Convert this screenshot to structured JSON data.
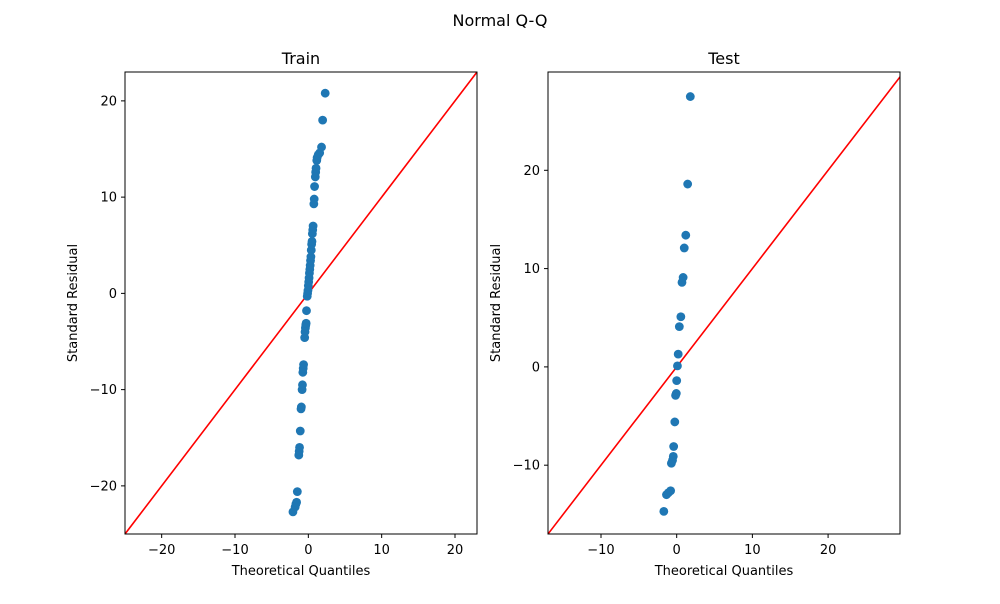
{
  "figure": {
    "title": "Normal Q-Q"
  },
  "chart_data": [
    {
      "type": "scatter",
      "title": "Train",
      "xlabel": "Theoretical Quantiles",
      "ylabel": "Standard Residual",
      "xlim": [
        -25,
        23
      ],
      "ylim": [
        -25,
        23
      ],
      "xticks": [
        -20,
        -10,
        0,
        10,
        20
      ],
      "yticks": [
        -20,
        -10,
        0,
        10,
        20
      ],
      "grid": false,
      "reference_line": {
        "slope": 1,
        "intercept": 0,
        "color": "#ff0000"
      },
      "marker_color": "#1f77b4",
      "points": [
        {
          "x": -2.1,
          "y": -22.7
        },
        {
          "x": -1.8,
          "y": -22.2
        },
        {
          "x": -1.7,
          "y": -21.9
        },
        {
          "x": -1.6,
          "y": -21.7
        },
        {
          "x": -1.5,
          "y": -20.6
        },
        {
          "x": -1.3,
          "y": -16.8
        },
        {
          "x": -1.25,
          "y": -16.4
        },
        {
          "x": -1.2,
          "y": -16.0
        },
        {
          "x": -1.1,
          "y": -14.3
        },
        {
          "x": -1.0,
          "y": -12.0
        },
        {
          "x": -0.95,
          "y": -11.8
        },
        {
          "x": -0.85,
          "y": -10.0
        },
        {
          "x": -0.8,
          "y": -9.5
        },
        {
          "x": -0.75,
          "y": -8.2
        },
        {
          "x": -0.7,
          "y": -7.8
        },
        {
          "x": -0.65,
          "y": -7.4
        },
        {
          "x": -0.5,
          "y": -4.6
        },
        {
          "x": -0.45,
          "y": -4.0
        },
        {
          "x": -0.4,
          "y": -3.6
        },
        {
          "x": -0.35,
          "y": -3.3
        },
        {
          "x": -0.3,
          "y": -3.1
        },
        {
          "x": -0.25,
          "y": -1.8
        },
        {
          "x": -0.15,
          "y": -0.3
        },
        {
          "x": -0.1,
          "y": 0.0
        },
        {
          "x": -0.05,
          "y": 0.3
        },
        {
          "x": 0.0,
          "y": 0.8
        },
        {
          "x": 0.05,
          "y": 1.2
        },
        {
          "x": 0.1,
          "y": 1.6
        },
        {
          "x": 0.15,
          "y": 2.1
        },
        {
          "x": 0.2,
          "y": 2.5
        },
        {
          "x": 0.25,
          "y": 2.9
        },
        {
          "x": 0.3,
          "y": 3.4
        },
        {
          "x": 0.35,
          "y": 3.8
        },
        {
          "x": 0.4,
          "y": 4.5
        },
        {
          "x": 0.45,
          "y": 5.1
        },
        {
          "x": 0.5,
          "y": 5.4
        },
        {
          "x": 0.55,
          "y": 6.2
        },
        {
          "x": 0.6,
          "y": 6.6
        },
        {
          "x": 0.65,
          "y": 7.0
        },
        {
          "x": 0.75,
          "y": 9.3
        },
        {
          "x": 0.8,
          "y": 9.8
        },
        {
          "x": 0.85,
          "y": 11.1
        },
        {
          "x": 0.95,
          "y": 12.1
        },
        {
          "x": 1.0,
          "y": 12.6
        },
        {
          "x": 1.05,
          "y": 13.0
        },
        {
          "x": 1.15,
          "y": 13.8
        },
        {
          "x": 1.2,
          "y": 14.1
        },
        {
          "x": 1.35,
          "y": 14.4
        },
        {
          "x": 1.55,
          "y": 14.6
        },
        {
          "x": 1.8,
          "y": 15.2
        },
        {
          "x": 1.95,
          "y": 18.0
        },
        {
          "x": 2.3,
          "y": 20.8
        }
      ]
    },
    {
      "type": "scatter",
      "title": "Test",
      "xlabel": "Theoretical Quantiles",
      "ylabel": "Standard Residual",
      "xlim": [
        -17,
        29.5
      ],
      "ylim": [
        -17,
        30
      ],
      "xticks": [
        -10,
        0,
        10,
        20
      ],
      "yticks": [
        -10,
        0,
        10,
        20
      ],
      "grid": false,
      "reference_line": {
        "slope": 1,
        "intercept": 0,
        "color": "#ff0000"
      },
      "marker_color": "#1f77b4",
      "points": [
        {
          "x": -1.7,
          "y": -14.7
        },
        {
          "x": -1.35,
          "y": -13.0
        },
        {
          "x": -1.1,
          "y": -12.8
        },
        {
          "x": -0.8,
          "y": -12.6
        },
        {
          "x": -0.7,
          "y": -9.8
        },
        {
          "x": -0.55,
          "y": -9.5
        },
        {
          "x": -0.45,
          "y": -9.1
        },
        {
          "x": -0.4,
          "y": -8.1
        },
        {
          "x": -0.25,
          "y": -5.6
        },
        {
          "x": -0.15,
          "y": -2.9
        },
        {
          "x": -0.05,
          "y": -2.7
        },
        {
          "x": 0.0,
          "y": -1.4
        },
        {
          "x": 0.1,
          "y": 0.1
        },
        {
          "x": 0.2,
          "y": 1.3
        },
        {
          "x": 0.35,
          "y": 4.1
        },
        {
          "x": 0.55,
          "y": 5.1
        },
        {
          "x": 0.7,
          "y": 8.6
        },
        {
          "x": 0.85,
          "y": 9.1
        },
        {
          "x": 1.0,
          "y": 12.1
        },
        {
          "x": 1.2,
          "y": 13.4
        },
        {
          "x": 1.45,
          "y": 18.6
        },
        {
          "x": 1.8,
          "y": 27.5
        }
      ]
    }
  ]
}
